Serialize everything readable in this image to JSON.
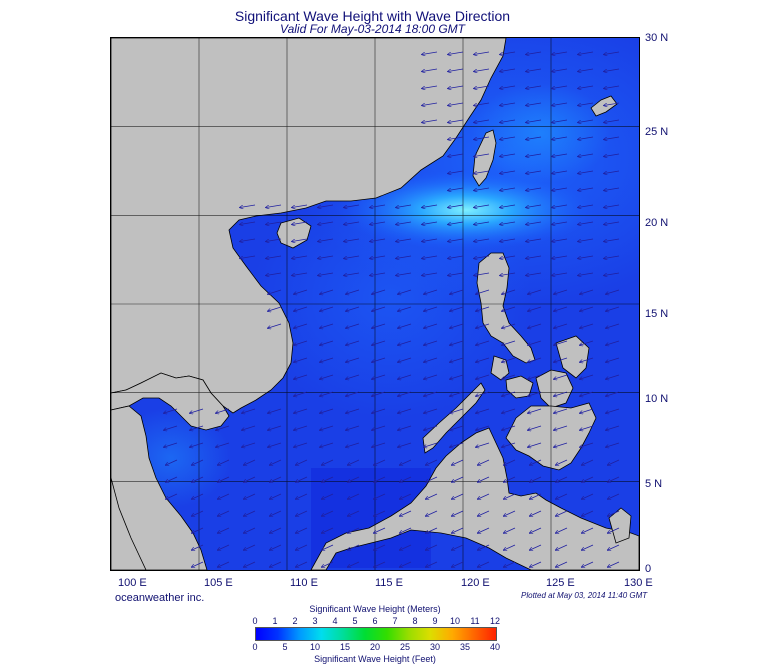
{
  "title": "Significant Wave Height with Wave Direction",
  "subtitle": "Valid For May-03-2014 18:00 GMT",
  "map": {
    "lon_range": [
      100,
      130
    ],
    "lat_range": [
      0,
      30
    ],
    "lat_labels": [
      "30 N",
      "25 N",
      "20 N",
      "15 N",
      "10 N",
      "5 N",
      "0"
    ],
    "lon_labels": [
      "100 E",
      "105 E",
      "110 E",
      "115 E",
      "120 E",
      "125 E",
      "130 E"
    ],
    "grid_interval_deg": 5,
    "land_color": "#c0c0c0",
    "ocean_base_color": "#1a3fe6",
    "peak_wave_area": "Luzon Strait"
  },
  "credit": "oceanweather inc.",
  "plotted_note": "Plotted at May 03, 2014 11:40 GMT",
  "colorbar": {
    "title_top": "Significant Wave Height (Meters)",
    "meters_ticks": [
      "0",
      "1",
      "2",
      "3",
      "4",
      "5",
      "6",
      "7",
      "8",
      "9",
      "10",
      "11",
      "12"
    ],
    "feet_ticks": [
      "0",
      "5",
      "10",
      "15",
      "20",
      "25",
      "30",
      "35",
      "40"
    ],
    "title_bottom": "Significant Wave Height (Feet)",
    "colors": [
      "#0000ff",
      "#0033ff",
      "#0099ff",
      "#00ddee",
      "#00dd99",
      "#00dd33",
      "#33dd00",
      "#99dd00",
      "#dddd00",
      "#ffaa00",
      "#ff6600",
      "#ff2200"
    ]
  }
}
